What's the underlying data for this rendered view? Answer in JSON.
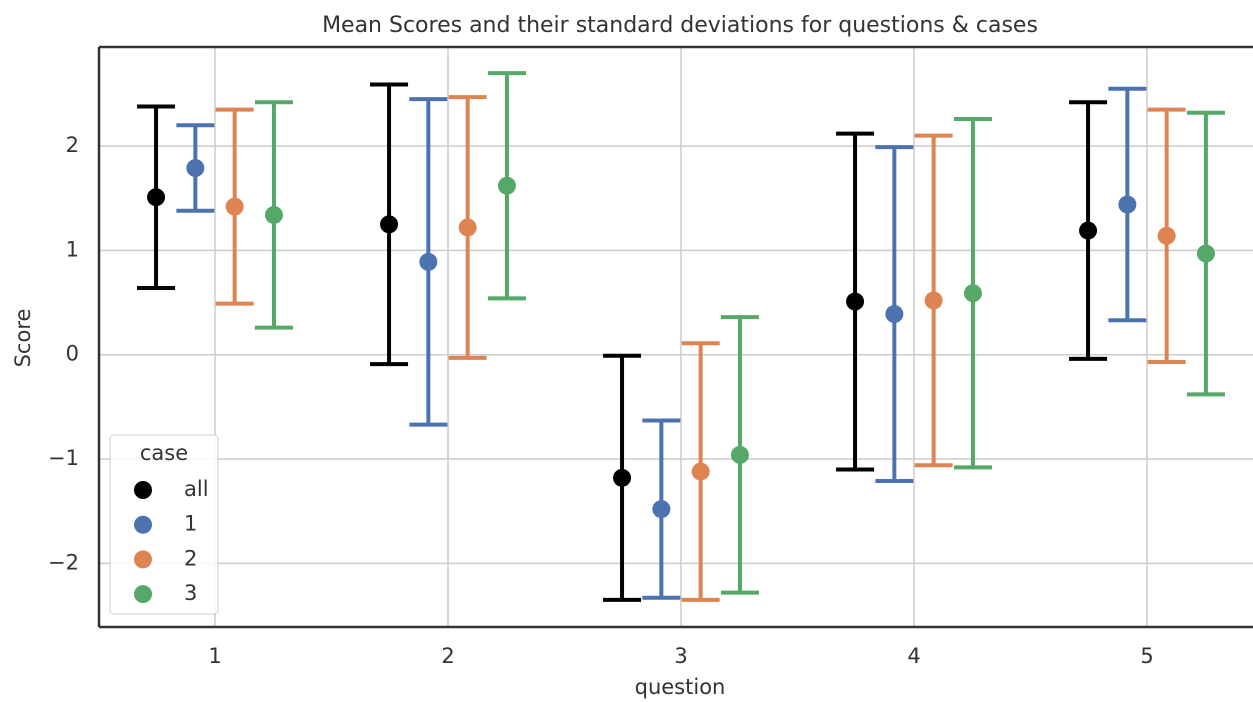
{
  "chart_data": {
    "type": "errorbar",
    "title": "Mean Scores and their standard deviations for questions & cases",
    "x_label": "question",
    "y_label": "Score",
    "categories": [
      "1",
      "2",
      "3",
      "4",
      "5"
    ],
    "legend_title": "case",
    "legend": "lower left",
    "grid": true,
    "ylim": [
      -2.61,
      2.95
    ],
    "yticks": [
      {
        "value": -2,
        "label": "−2"
      },
      {
        "value": -1,
        "label": "−1"
      },
      0,
      1,
      2
    ],
    "series": [
      {
        "name": "all",
        "color": "#000000",
        "values": [
          1.51,
          1.25,
          -1.18,
          0.51,
          1.19
        ],
        "errors": [
          0.87,
          1.34,
          1.17,
          1.61,
          1.23
        ]
      },
      {
        "name": "1",
        "color": "#4c72b0",
        "values": [
          1.79,
          0.89,
          -1.48,
          0.39,
          1.44
        ],
        "errors": [
          0.41,
          1.56,
          0.85,
          1.6,
          1.11
        ]
      },
      {
        "name": "2",
        "color": "#dd8452",
        "values": [
          1.42,
          1.22,
          -1.12,
          0.52,
          1.14
        ],
        "errors": [
          0.93,
          1.25,
          1.23,
          1.58,
          1.21
        ]
      },
      {
        "name": "3",
        "color": "#55a868",
        "values": [
          1.34,
          1.62,
          -0.96,
          0.59,
          0.97
        ],
        "errors": [
          1.08,
          1.08,
          1.32,
          1.67,
          1.35
        ]
      }
    ]
  }
}
